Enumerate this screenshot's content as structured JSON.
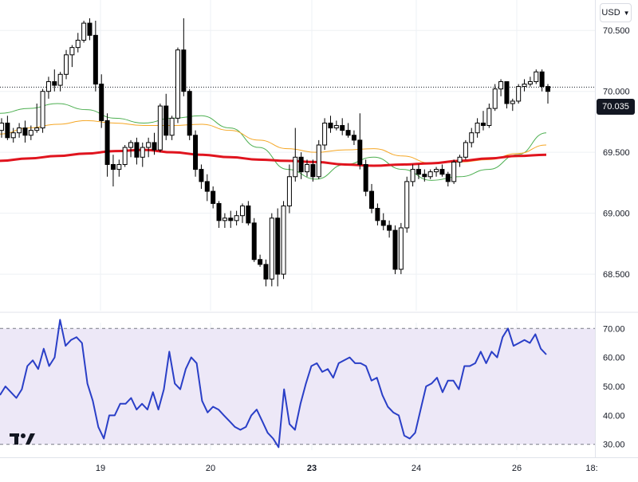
{
  "header": {
    "currency": "USD",
    "dropdown_icon": "chevron-down-icon"
  },
  "logo": {
    "name": "tradingview-logo-icon"
  },
  "colors": {
    "candle_up": "#ffffff",
    "candle_down": "#000000",
    "candle_border": "#000000",
    "ma_long": "#e0141e",
    "ma_mid": "#f5a623",
    "ma_short": "#4caf50",
    "rsi_line": "#2a3fc7",
    "rsi_band": "#ede8f7",
    "grid": "#eef0f4",
    "axis_text": "#131722"
  },
  "chart_data": [
    {
      "type": "candlestick",
      "title": "",
      "ylim": [
        68.2,
        70.75
      ],
      "y_ticks": [
        "70.500",
        "70.000",
        "69.500",
        "69.000",
        "68.500"
      ],
      "current_price": "70.035",
      "x_ticks": [
        "19",
        "20",
        "23",
        "24",
        "26",
        "18:"
      ],
      "candles": [
        [
          69.68,
          69.78,
          69.62,
          69.74
        ],
        [
          69.74,
          69.8,
          69.6,
          69.62
        ],
        [
          69.62,
          69.7,
          69.58,
          69.66
        ],
        [
          69.66,
          69.74,
          69.62,
          69.7
        ],
        [
          69.7,
          69.76,
          69.58,
          69.64
        ],
        [
          69.64,
          69.72,
          69.6,
          69.68
        ],
        [
          69.68,
          69.9,
          69.66,
          69.7
        ],
        [
          69.7,
          70.02,
          69.66,
          70.0
        ],
        [
          70.0,
          70.12,
          69.94,
          70.08
        ],
        [
          70.08,
          70.18,
          70.0,
          70.05
        ],
        [
          70.05,
          70.16,
          70.0,
          70.14
        ],
        [
          70.14,
          70.34,
          70.1,
          70.3
        ],
        [
          70.3,
          70.38,
          70.2,
          70.36
        ],
        [
          70.36,
          70.48,
          70.32,
          70.42
        ],
        [
          70.42,
          70.58,
          70.4,
          70.56
        ],
        [
          70.56,
          70.6,
          70.42,
          70.46
        ],
        [
          70.46,
          70.58,
          70.0,
          70.06
        ],
        [
          70.06,
          70.14,
          69.7,
          69.76
        ],
        [
          69.76,
          69.82,
          69.3,
          69.4
        ],
        [
          69.4,
          69.48,
          69.22,
          69.36
        ],
        [
          69.36,
          69.44,
          69.3,
          69.4
        ],
        [
          69.4,
          69.56,
          69.38,
          69.54
        ],
        [
          69.54,
          69.6,
          69.46,
          69.58
        ],
        [
          69.58,
          69.62,
          69.4,
          69.46
        ],
        [
          69.46,
          69.58,
          69.38,
          69.54
        ],
        [
          69.54,
          69.62,
          69.46,
          69.58
        ],
        [
          69.58,
          69.66,
          69.48,
          69.52
        ],
        [
          69.52,
          69.9,
          69.5,
          69.88
        ],
        [
          69.88,
          69.98,
          69.6,
          69.64
        ],
        [
          69.64,
          69.8,
          69.6,
          69.78
        ],
        [
          69.78,
          70.36,
          69.74,
          70.34
        ],
        [
          70.34,
          70.6,
          69.96,
          70.0
        ],
        [
          70.0,
          70.02,
          69.6,
          69.64
        ],
        [
          69.64,
          69.68,
          69.3,
          69.36
        ],
        [
          69.36,
          69.4,
          69.2,
          69.26
        ],
        [
          69.26,
          69.32,
          69.1,
          69.18
        ],
        [
          69.18,
          69.22,
          69.04,
          69.08
        ],
        [
          69.08,
          69.1,
          68.88,
          68.94
        ],
        [
          68.94,
          69.0,
          68.88,
          68.96
        ],
        [
          68.96,
          69.02,
          68.88,
          68.94
        ],
        [
          68.94,
          69.02,
          68.9,
          68.98
        ],
        [
          68.98,
          69.08,
          68.92,
          69.06
        ],
        [
          69.06,
          69.1,
          68.9,
          68.92
        ],
        [
          68.92,
          68.96,
          68.6,
          68.62
        ],
        [
          68.62,
          68.66,
          68.56,
          68.58
        ],
        [
          68.58,
          68.62,
          68.4,
          68.46
        ],
        [
          68.46,
          69.0,
          68.4,
          68.96
        ],
        [
          68.96,
          69.04,
          68.4,
          68.5
        ],
        [
          68.5,
          69.1,
          68.46,
          69.06
        ],
        [
          69.06,
          69.4,
          69.0,
          69.3
        ],
        [
          69.3,
          69.7,
          69.26,
          69.46
        ],
        [
          69.46,
          69.5,
          69.28,
          69.34
        ],
        [
          69.34,
          69.44,
          69.3,
          69.4
        ],
        [
          69.4,
          69.44,
          69.26,
          69.3
        ],
        [
          69.3,
          69.6,
          69.28,
          69.56
        ],
        [
          69.56,
          69.78,
          69.52,
          69.74
        ],
        [
          69.74,
          69.8,
          69.66,
          69.7
        ],
        [
          69.7,
          69.76,
          69.68,
          69.72
        ],
        [
          69.72,
          69.78,
          69.64,
          69.68
        ],
        [
          69.68,
          69.74,
          69.62,
          69.64
        ],
        [
          69.64,
          69.68,
          69.56,
          69.6
        ],
        [
          69.6,
          69.82,
          69.36,
          69.4
        ],
        [
          69.4,
          69.44,
          69.14,
          69.18
        ],
        [
          69.18,
          69.24,
          69.0,
          69.04
        ],
        [
          69.04,
          69.08,
          68.9,
          68.94
        ],
        [
          68.94,
          69.0,
          68.86,
          68.9
        ],
        [
          68.9,
          68.94,
          68.8,
          68.86
        ],
        [
          68.86,
          68.9,
          68.5,
          68.54
        ],
        [
          68.54,
          68.92,
          68.5,
          68.88
        ],
        [
          68.88,
          69.3,
          68.84,
          69.26
        ],
        [
          69.26,
          69.4,
          69.22,
          69.36
        ],
        [
          69.36,
          69.4,
          69.28,
          69.32
        ],
        [
          69.32,
          69.36,
          69.26,
          69.3
        ],
        [
          69.3,
          69.36,
          69.28,
          69.34
        ],
        [
          69.34,
          69.38,
          69.3,
          69.36
        ],
        [
          69.36,
          69.4,
          69.3,
          69.32
        ],
        [
          69.32,
          69.34,
          69.22,
          69.26
        ],
        [
          69.26,
          69.44,
          69.24,
          69.42
        ],
        [
          69.42,
          69.48,
          69.38,
          69.46
        ],
        [
          69.46,
          69.6,
          69.44,
          69.58
        ],
        [
          69.58,
          69.7,
          69.54,
          69.66
        ],
        [
          69.66,
          69.78,
          69.62,
          69.74
        ],
        [
          69.74,
          69.84,
          69.68,
          69.72
        ],
        [
          69.72,
          69.9,
          69.7,
          69.86
        ],
        [
          69.86,
          70.06,
          69.84,
          70.02
        ],
        [
          70.02,
          70.1,
          69.96,
          70.08
        ],
        [
          70.08,
          70.08,
          69.86,
          69.9
        ],
        [
          69.9,
          69.94,
          69.84,
          69.92
        ],
        [
          69.92,
          70.06,
          69.9,
          70.04
        ],
        [
          70.04,
          70.1,
          70.0,
          70.06
        ],
        [
          70.06,
          70.12,
          70.04,
          70.08
        ],
        [
          70.08,
          70.18,
          70.06,
          70.16
        ],
        [
          70.16,
          70.18,
          70.0,
          70.04
        ],
        [
          70.04,
          70.06,
          69.9,
          70.0
        ]
      ],
      "ma_long": [
        69.43,
        69.45,
        69.47,
        69.49,
        69.51,
        69.52,
        69.5,
        69.48,
        69.46,
        69.44,
        69.43,
        69.42,
        69.4,
        69.39,
        69.4,
        69.41,
        69.43,
        69.45,
        69.47,
        69.48
      ],
      "ma_mid": [
        69.65,
        69.7,
        69.73,
        69.76,
        69.74,
        69.72,
        69.72,
        69.73,
        69.68,
        69.6,
        69.53,
        69.5,
        69.52,
        69.53,
        69.47,
        69.41,
        69.42,
        69.44,
        69.49,
        69.56
      ],
      "ma_short": [
        69.82,
        69.86,
        69.9,
        69.85,
        69.78,
        69.74,
        69.78,
        69.8,
        69.7,
        69.54,
        69.36,
        69.28,
        69.4,
        69.46,
        69.36,
        69.27,
        69.3,
        69.36,
        69.48,
        69.66
      ]
    },
    {
      "type": "line",
      "title": "",
      "ylim": [
        28,
        72
      ],
      "y_ticks": [
        "70.00",
        "60.00",
        "50.00",
        "40.00",
        "30.00"
      ],
      "overbought": 70,
      "oversold": 30,
      "series": [
        {
          "values": [
            47,
            50,
            48,
            46,
            49,
            57,
            59,
            56,
            63,
            57,
            60,
            73,
            64,
            66,
            67,
            65,
            51,
            45,
            36,
            32,
            40,
            40,
            44,
            44,
            46,
            42,
            44,
            42,
            48,
            42,
            49,
            62,
            51,
            49,
            56,
            60,
            58,
            45,
            41,
            43,
            42,
            40,
            38,
            36,
            35,
            36,
            40,
            42,
            38,
            34,
            32,
            29,
            49,
            37,
            35,
            44,
            51,
            57,
            58,
            55,
            56,
            53,
            58,
            59,
            60,
            58,
            58,
            57,
            52,
            53,
            47,
            43,
            41,
            40,
            33,
            32,
            34,
            42,
            50,
            51,
            53,
            48,
            52,
            52,
            49,
            57,
            57,
            58,
            62,
            58,
            62,
            60,
            67,
            70,
            64,
            65,
            66,
            65,
            68,
            63,
            61
          ]
        }
      ],
      "x_ticks": [
        "19",
        "20",
        "23",
        "24",
        "26",
        "18:"
      ]
    }
  ]
}
